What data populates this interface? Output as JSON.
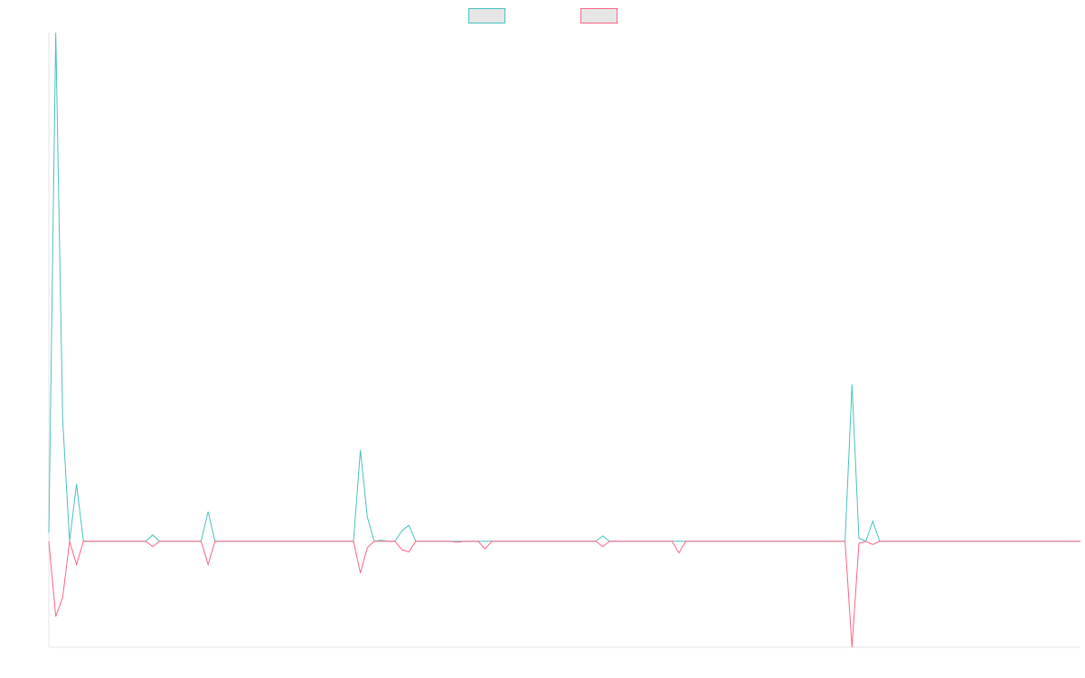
{
  "chart_data": {
    "type": "line",
    "title": "",
    "xlabel": "",
    "ylabel": "",
    "grid": false,
    "legend_position": "top-center",
    "x": [
      0,
      1,
      2,
      3,
      4,
      5,
      6,
      7,
      8,
      9,
      10,
      11,
      12,
      13,
      14,
      15,
      16,
      17,
      18,
      19,
      20,
      21,
      22,
      23,
      24,
      25,
      26,
      27,
      28,
      29,
      30,
      31,
      32,
      33,
      34,
      35,
      36,
      37,
      38,
      39,
      40,
      41,
      42,
      43,
      44,
      45,
      46,
      47,
      48,
      49,
      50,
      51,
      52,
      53,
      54,
      55,
      56,
      57,
      58,
      59,
      60,
      61,
      62,
      63,
      64,
      65,
      66,
      67,
      68,
      69,
      70,
      71,
      72,
      73,
      74,
      75,
      76,
      77,
      78,
      79,
      80,
      81,
      82,
      83,
      84,
      85,
      86,
      87,
      88,
      89,
      90,
      91,
      92,
      93,
      94,
      95,
      96,
      97,
      98,
      99,
      100,
      101,
      102,
      103,
      104,
      105,
      106,
      107,
      108,
      109,
      110,
      111,
      112,
      113,
      114,
      115,
      116,
      117,
      118,
      119,
      120,
      121,
      122,
      123,
      124,
      125,
      126,
      127,
      128,
      129,
      130,
      131,
      132,
      133,
      134,
      135,
      136,
      137,
      138,
      139,
      140,
      141,
      142,
      143,
      144,
      145,
      146,
      147,
      148,
      149
    ],
    "xlim": [
      0,
      149
    ],
    "ylim": [
      -100,
      480
    ],
    "series": [
      {
        "color": "#4bc0c0",
        "values": [
          8,
          480,
          115,
          0,
          54,
          0,
          0,
          0,
          0,
          0,
          0,
          0,
          0,
          0,
          0,
          6,
          0,
          0,
          0,
          0,
          0,
          0,
          0,
          28,
          0,
          0,
          0,
          0,
          0,
          0,
          0,
          0,
          0,
          0,
          0,
          0,
          0,
          0,
          0,
          0,
          0,
          0,
          0,
          0,
          0,
          86,
          23,
          0,
          1,
          0,
          0,
          10,
          15,
          0,
          0,
          0,
          0,
          0,
          0,
          0,
          0,
          0,
          0,
          0,
          0,
          0,
          0,
          0,
          0,
          0,
          0,
          0,
          0,
          0,
          0,
          0,
          0,
          0,
          0,
          0,
          5,
          0,
          0,
          0,
          0,
          0,
          0,
          0,
          0,
          0,
          0,
          0,
          0,
          0,
          0,
          0,
          0,
          0,
          0,
          0,
          0,
          0,
          0,
          0,
          0,
          0,
          0,
          0,
          0,
          0,
          0,
          0,
          0,
          0,
          0,
          0,
          148,
          3,
          0,
          19,
          0,
          0,
          0,
          0,
          0,
          0,
          0,
          0,
          0,
          0,
          0,
          0,
          0,
          0,
          0,
          0,
          0,
          0,
          0,
          0,
          0,
          0,
          0,
          0,
          0,
          0,
          0,
          0,
          0,
          0
        ]
      },
      {
        "color": "#ff6384",
        "values": [
          0,
          -71,
          -53,
          0,
          -22,
          0,
          0,
          0,
          0,
          0,
          0,
          0,
          0,
          0,
          0,
          -5,
          0,
          0,
          0,
          0,
          0,
          0,
          0,
          -22,
          0,
          0,
          0,
          0,
          0,
          0,
          0,
          0,
          0,
          0,
          0,
          0,
          0,
          0,
          0,
          0,
          0,
          0,
          0,
          0,
          0,
          -30,
          -6,
          0,
          0,
          0,
          0,
          -8,
          -10,
          0,
          0,
          0,
          0,
          0,
          0,
          -1,
          0,
          0,
          0,
          -7,
          0,
          0,
          0,
          0,
          0,
          0,
          0,
          0,
          0,
          0,
          0,
          0,
          0,
          0,
          0,
          0,
          -5,
          0,
          0,
          0,
          0,
          0,
          0,
          0,
          0,
          0,
          0,
          -11,
          0,
          0,
          0,
          0,
          0,
          0,
          0,
          0,
          0,
          0,
          0,
          0,
          0,
          0,
          0,
          0,
          0,
          0,
          0,
          0,
          0,
          0,
          0,
          0,
          -100,
          -2,
          0,
          -3,
          0,
          0,
          0,
          0,
          0,
          0,
          0,
          0,
          0,
          0,
          0,
          0,
          0,
          0,
          0,
          0,
          0,
          0,
          0,
          0,
          0,
          0,
          0,
          0,
          0,
          0,
          0,
          0,
          0,
          0
        ]
      }
    ]
  }
}
